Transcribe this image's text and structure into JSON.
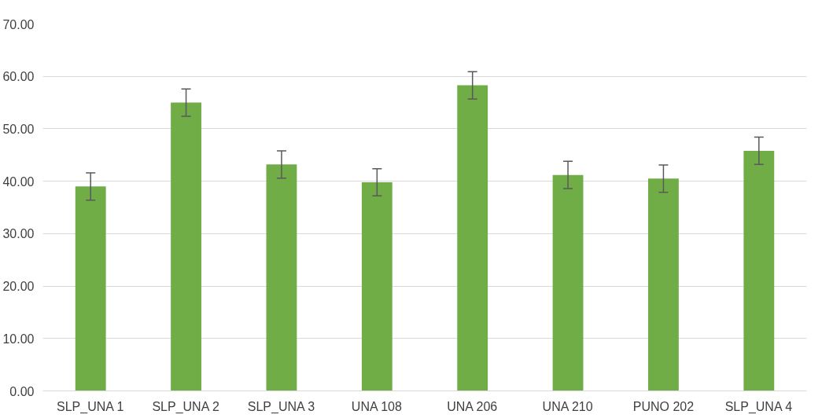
{
  "chart_data": {
    "type": "bar",
    "categories": [
      "SLP_UNA 1",
      "SLP_UNA 2",
      "SLP_UNA 3",
      "UNA 108",
      "UNA 206",
      "UNA 210",
      "PUNO 202",
      "SLP_UNA 4"
    ],
    "values": [
      39.0,
      55.0,
      43.2,
      39.8,
      58.3,
      41.2,
      40.5,
      45.8
    ],
    "errors": [
      2.6,
      2.6,
      2.6,
      2.6,
      2.6,
      2.6,
      2.6,
      2.6
    ],
    "color": "#70ad47",
    "ylim": [
      0,
      70
    ],
    "yticks": [
      {
        "value": 0,
        "label": "0.00"
      },
      {
        "value": 10,
        "label": "10.00"
      },
      {
        "value": 20,
        "label": "20.00"
      },
      {
        "value": 30,
        "label": "30.00"
      },
      {
        "value": 40,
        "label": "40.00"
      },
      {
        "value": 50,
        "label": "50.00"
      },
      {
        "value": 60,
        "label": "60.00"
      },
      {
        "value": 70,
        "label": "70.00"
      }
    ],
    "grid": "y"
  }
}
